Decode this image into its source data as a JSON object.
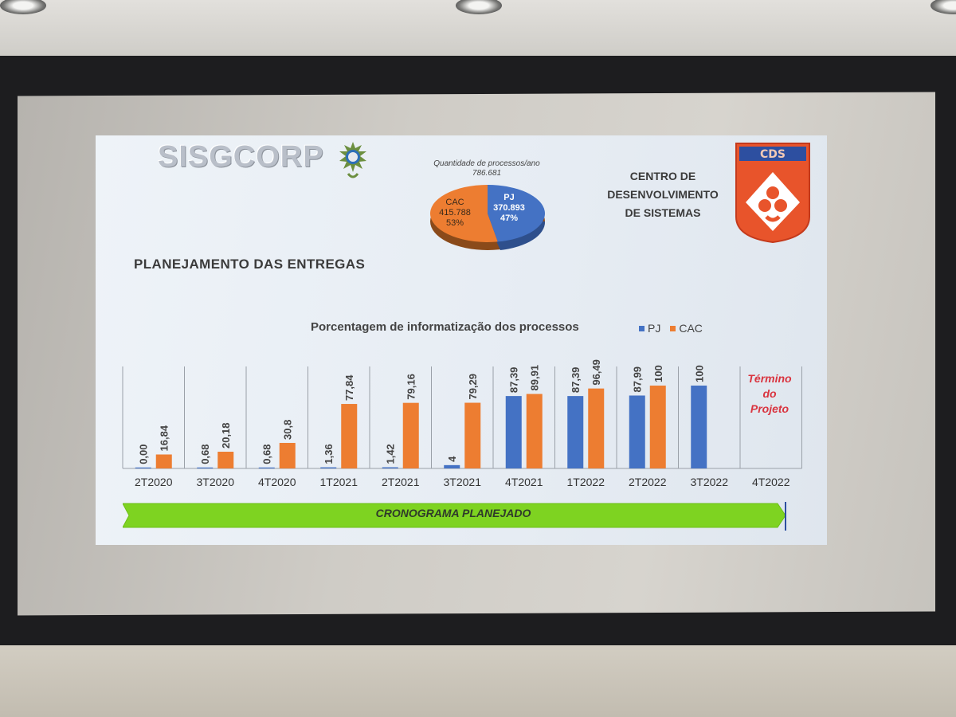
{
  "header": {
    "logo_text": "SISGCORP",
    "org_name_lines": [
      "CENTRO DE",
      "DESENVOLVIMENTO",
      "DE SISTEMAS"
    ],
    "shield_text": "CDS"
  },
  "section_title": "PLANEJAMENTO  DAS ENTREGAS",
  "pie": {
    "title": "Quantidade de processos/ano",
    "total": "786.681",
    "slices": [
      {
        "name": "CAC",
        "value": "415.788",
        "percent": "53%",
        "color": "#ed7d31"
      },
      {
        "name": "PJ",
        "value": "370.893",
        "percent": "47%",
        "color": "#4472c4"
      }
    ]
  },
  "termino_lines": [
    "Término",
    "do",
    "Projeto"
  ],
  "cronograma_label": "CRONOGRAMA PLANEJADO",
  "colors": {
    "pj": "#4472c4",
    "cac": "#ed7d31",
    "arrow": "#7ed321",
    "termino": "#d9343f"
  },
  "chart_data": [
    {
      "type": "pie",
      "title": "Quantidade de processos/ano",
      "categories": [
        "CAC",
        "PJ"
      ],
      "values": [
        415788,
        370893
      ],
      "percent": [
        53,
        47
      ]
    },
    {
      "type": "bar",
      "title": "Porcentagem de informatização dos processos",
      "categories": [
        "2T2020",
        "3T2020",
        "4T2020",
        "1T2021",
        "2T2021",
        "3T2021",
        "4T2021",
        "1T2022",
        "2T2022",
        "3T2022",
        "4T2022"
      ],
      "series": [
        {
          "name": "PJ",
          "values": [
            0.0,
            0.68,
            0.68,
            1.36,
            1.42,
            4,
            87.39,
            87.39,
            87.99,
            100,
            null
          ],
          "labels": [
            "0,00",
            "0,68",
            "0,68",
            "1,36",
            "1,42",
            "4",
            "87,39",
            "87,39",
            "87,99",
            "100",
            ""
          ]
        },
        {
          "name": "CAC",
          "values": [
            16.84,
            20.18,
            30.8,
            77.84,
            79.16,
            79.29,
            89.91,
            96.49,
            100,
            null,
            null
          ],
          "labels": [
            "16,84",
            "20,18",
            "30,8",
            "77,84",
            "79,16",
            "79,29",
            "89,91",
            "96,49",
            "100",
            "",
            ""
          ]
        }
      ],
      "ylim": [
        0,
        100
      ],
      "legend": "top-right",
      "grid": false
    }
  ]
}
